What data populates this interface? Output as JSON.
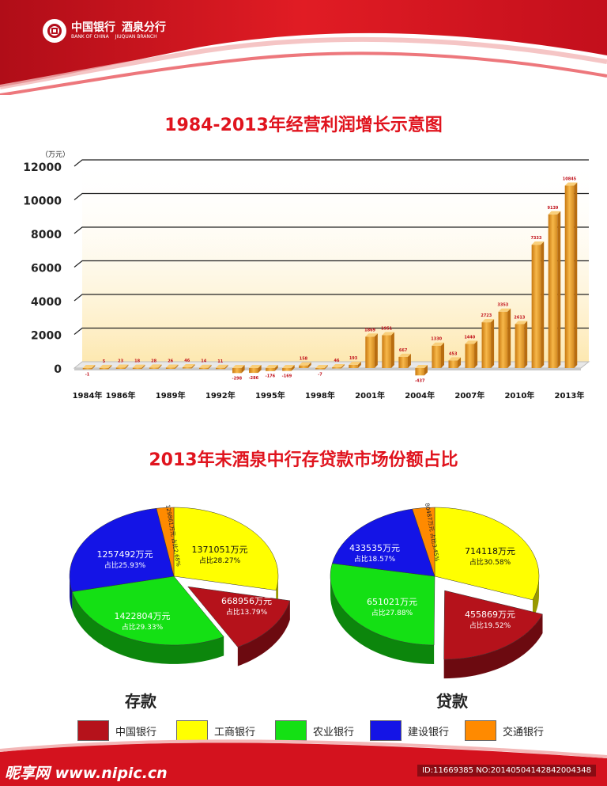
{
  "header": {
    "logo_cn": "中国银行",
    "logo_en": "BANK OF CHINA",
    "branch_cn": "酒泉分行",
    "branch_en": "JIUQUAN BRANCH"
  },
  "titles": {
    "profit": "1984-2013年经营利润增长示意图",
    "share": "2013年末酒泉中行存贷款市场份额占比"
  },
  "colors": {
    "bar": "#f0a030",
    "bank_of_china": "#b5121b",
    "icbc": "#ffff00",
    "abc": "#14e014",
    "ccb": "#1414e6",
    "bocom": "#ff8a00",
    "title_red": "#e0141e"
  },
  "chart_data": [
    {
      "type": "bar",
      "ylabel": "（万元）",
      "ylim": [
        0,
        12000
      ],
      "y_ticks": [
        "0",
        "2000",
        "4000",
        "6000",
        "8000",
        "10000",
        "12000"
      ],
      "x": [
        1984,
        1985,
        1986,
        1987,
        1988,
        1989,
        1990,
        1991,
        1992,
        1993,
        1994,
        1995,
        1996,
        1997,
        1998,
        1999,
        2000,
        2001,
        2002,
        2003,
        2004,
        2005,
        2006,
        2007,
        2008,
        2009,
        2010,
        2011,
        2012,
        2013
      ],
      "values": [
        -1,
        5,
        23,
        18,
        28,
        26,
        46,
        14,
        11,
        -298,
        -286,
        -176,
        -169,
        158,
        -7,
        46,
        193,
        1869,
        1951,
        667,
        -437,
        1330,
        453,
        1440,
        2723,
        3353,
        2613,
        7333,
        9139,
        10845
      ],
      "value_labels": [
        "-1",
        "5",
        "23",
        "18",
        "28",
        "26",
        "46",
        "14",
        "11",
        "-298",
        "-286",
        "-176",
        "-169",
        "158",
        "-7",
        "46",
        "193",
        "1869",
        "1951",
        "667",
        "-437",
        "1330",
        "453",
        "1440",
        "2723",
        "3353",
        "2613",
        "7333",
        "9139",
        "10845"
      ],
      "x_tick_labels": [
        {
          "year": 1984,
          "label": "1984年"
        },
        {
          "year": 1986,
          "label": "1986年"
        },
        {
          "year": 1989,
          "label": "1989年"
        },
        {
          "year": 1992,
          "label": "1992年"
        },
        {
          "year": 1995,
          "label": "1995年"
        },
        {
          "year": 1998,
          "label": "1998年"
        },
        {
          "year": 2001,
          "label": "2001年"
        },
        {
          "year": 2004,
          "label": "2004年"
        },
        {
          "year": 2007,
          "label": "2007年"
        },
        {
          "year": 2010,
          "label": "2010年"
        },
        {
          "year": 2013,
          "label": "2013年"
        }
      ],
      "grid": true
    },
    {
      "type": "pie",
      "title": "存款",
      "categories": [
        "中国银行",
        "工商银行",
        "农业银行",
        "建设银行",
        "交通银行"
      ],
      "values": [
        668956,
        1371051,
        1422804,
        1257492,
        129861
      ],
      "share_percent": [
        13.79,
        28.27,
        29.33,
        25.93,
        2.68
      ],
      "value_labels": [
        "668956万元",
        "1371051万元",
        "1422804万元",
        "1257492万元",
        "129861万元"
      ],
      "share_labels": [
        "占比13.79%",
        "占比28.27%",
        "占比29.33%",
        "占比25.93%",
        "占比2.68%"
      ],
      "exploded": "中国银行"
    },
    {
      "type": "pie",
      "title": "贷款",
      "categories": [
        "中国银行",
        "工商银行",
        "农业银行",
        "建设银行",
        "交通银行"
      ],
      "values": [
        455869,
        714118,
        651021,
        433535,
        80487
      ],
      "share_percent": [
        19.52,
        30.58,
        27.88,
        18.57,
        3.45
      ],
      "value_labels": [
        "455869万元",
        "714118万元",
        "651021万元",
        "433535万元",
        "80487万元"
      ],
      "share_labels": [
        "占比19.52%",
        "占比30.58%",
        "占比27.88%",
        "占比18.57%",
        "占比3.45%"
      ],
      "exploded": "中国银行"
    }
  ],
  "legend": [
    {
      "label": "中国银行",
      "color": "#b5121b"
    },
    {
      "label": "工商银行",
      "color": "#ffff00"
    },
    {
      "label": "农业银行",
      "color": "#14e014"
    },
    {
      "label": "建设银行",
      "color": "#1414e6"
    },
    {
      "label": "交通银行",
      "color": "#ff8a00"
    }
  ],
  "footer": {
    "watermark": "昵享网 www.nipic.cn",
    "image_id": "ID:11669385 NO:20140504142842004348"
  }
}
